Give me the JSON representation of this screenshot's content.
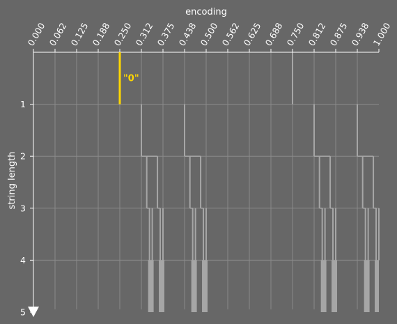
{
  "chart_data": {
    "type": "line",
    "title": "",
    "xlabel": "encoding",
    "ylabel": "string length",
    "xlim": [
      0,
      1
    ],
    "ylim": [
      0,
      5
    ],
    "y_inverted": true,
    "grid": true,
    "x_ticks": [
      "0.000",
      "0.062",
      "0.125",
      "0.188",
      "0.250",
      "0.312",
      "0.375",
      "0.438",
      "0.500",
      "0.562",
      "0.625",
      "0.688",
      "0.750",
      "0.812",
      "0.875",
      "0.938",
      "1.000"
    ],
    "y_ticks": [
      "1",
      "2",
      "3",
      "4",
      "5"
    ],
    "highlight": {
      "label": "\"0\"",
      "x": 0.25,
      "length": 1,
      "color": "#FFD700"
    },
    "series_color": "#a6a6a6",
    "verticals": [
      {
        "x": 0.75,
        "from": 0,
        "to": 1
      },
      {
        "x": 0.3125,
        "from": 1,
        "to": 2
      },
      {
        "x": 0.4375,
        "from": 1,
        "to": 2
      },
      {
        "x": 0.9375,
        "from": 1,
        "to": 2
      },
      {
        "x": 0.8125,
        "from": 1,
        "to": 2
      },
      {
        "x": 0.328,
        "from": 2,
        "to": 3
      },
      {
        "x": 0.359,
        "from": 2,
        "to": 3
      },
      {
        "x": 0.453,
        "from": 2,
        "to": 3
      },
      {
        "x": 0.484,
        "from": 2,
        "to": 3
      },
      {
        "x": 0.828,
        "from": 2,
        "to": 3
      },
      {
        "x": 0.859,
        "from": 2,
        "to": 3
      },
      {
        "x": 0.953,
        "from": 2,
        "to": 3
      },
      {
        "x": 0.984,
        "from": 2,
        "to": 3
      },
      {
        "x": 0.336,
        "from": 3,
        "to": 4
      },
      {
        "x": 0.344,
        "from": 3,
        "to": 4
      },
      {
        "x": 0.367,
        "from": 3,
        "to": 4
      },
      {
        "x": 0.375,
        "from": 3,
        "to": 4
      },
      {
        "x": 0.461,
        "from": 3,
        "to": 4
      },
      {
        "x": 0.469,
        "from": 3,
        "to": 4
      },
      {
        "x": 0.492,
        "from": 3,
        "to": 4
      },
      {
        "x": 0.5,
        "from": 3,
        "to": 4
      },
      {
        "x": 0.836,
        "from": 3,
        "to": 4
      },
      {
        "x": 0.844,
        "from": 3,
        "to": 4
      },
      {
        "x": 0.867,
        "from": 3,
        "to": 4
      },
      {
        "x": 0.875,
        "from": 3,
        "to": 4
      },
      {
        "x": 0.961,
        "from": 3,
        "to": 4
      },
      {
        "x": 0.969,
        "from": 3,
        "to": 4
      },
      {
        "x": 0.992,
        "from": 3,
        "to": 4
      },
      {
        "x": 1.0,
        "from": 3,
        "to": 4
      }
    ],
    "dense_blocks": [
      {
        "x_start": 0.332,
        "x_end": 0.348,
        "from": 4,
        "to": 5
      },
      {
        "x_start": 0.363,
        "x_end": 0.379,
        "from": 4,
        "to": 5
      },
      {
        "x_start": 0.457,
        "x_end": 0.473,
        "from": 4,
        "to": 5
      },
      {
        "x_start": 0.488,
        "x_end": 0.504,
        "from": 4,
        "to": 5
      },
      {
        "x_start": 0.832,
        "x_end": 0.848,
        "from": 4,
        "to": 5
      },
      {
        "x_start": 0.863,
        "x_end": 0.879,
        "from": 4,
        "to": 5
      },
      {
        "x_start": 0.957,
        "x_end": 0.973,
        "from": 4,
        "to": 5
      },
      {
        "x_start": 0.988,
        "x_end": 1.0,
        "from": 4,
        "to": 5
      }
    ],
    "connectors": [
      {
        "x1": 0.3125,
        "x2": 0.328,
        "y": 2
      },
      {
        "x1": 0.328,
        "x2": 0.359,
        "y": 2
      },
      {
        "x1": 0.328,
        "x2": 0.336,
        "y": 3
      },
      {
        "x1": 0.359,
        "x2": 0.367,
        "y": 3
      },
      {
        "x1": 0.4375,
        "x2": 0.453,
        "y": 2
      },
      {
        "x1": 0.453,
        "x2": 0.484,
        "y": 2
      },
      {
        "x1": 0.453,
        "x2": 0.461,
        "y": 3
      },
      {
        "x1": 0.484,
        "x2": 0.492,
        "y": 3
      },
      {
        "x1": 0.8125,
        "x2": 0.828,
        "y": 2
      },
      {
        "x1": 0.828,
        "x2": 0.859,
        "y": 2
      },
      {
        "x1": 0.828,
        "x2": 0.836,
        "y": 3
      },
      {
        "x1": 0.859,
        "x2": 0.867,
        "y": 3
      },
      {
        "x1": 0.9375,
        "x2": 0.953,
        "y": 2
      },
      {
        "x1": 0.953,
        "x2": 0.984,
        "y": 2
      },
      {
        "x1": 0.953,
        "x2": 0.961,
        "y": 3
      },
      {
        "x1": 0.984,
        "x2": 0.992,
        "y": 3
      }
    ]
  }
}
